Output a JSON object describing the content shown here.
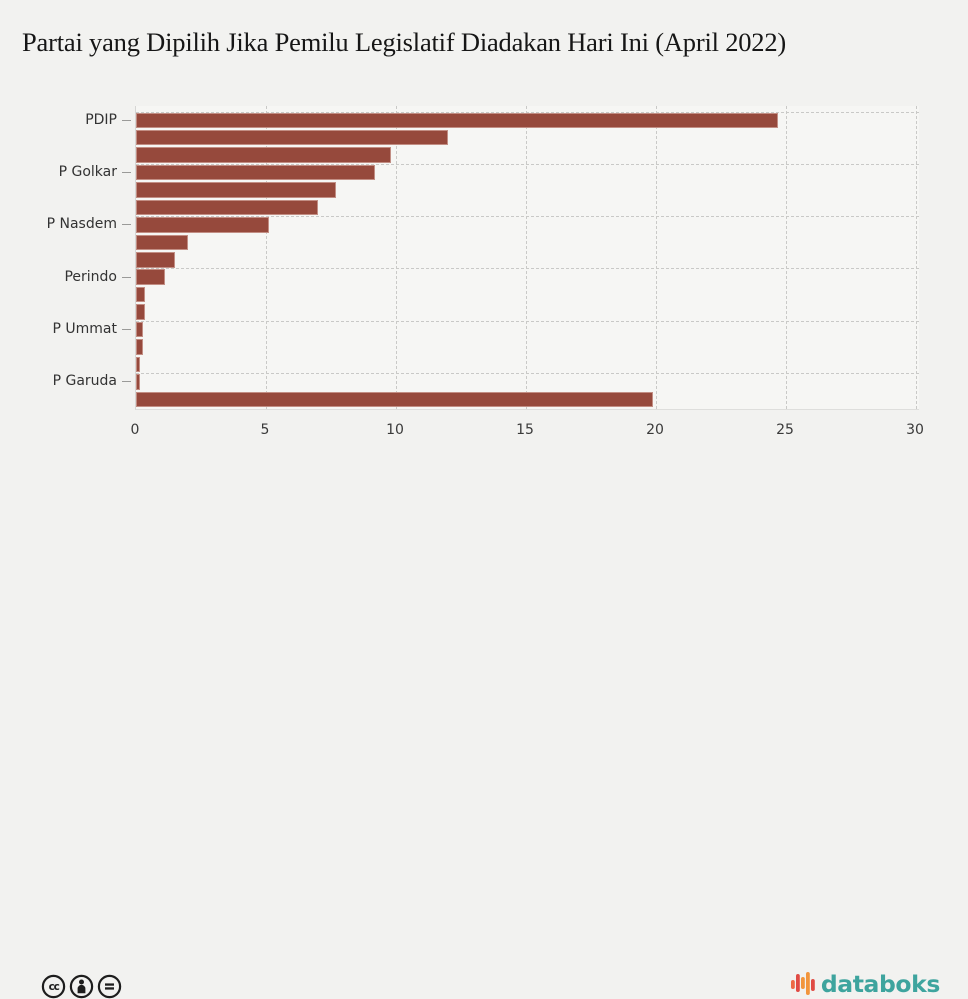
{
  "title": "Partai yang Dipilih Jika Pemilu Legislatif Diadakan Hari Ini (April 2022)",
  "chart_data": {
    "type": "bar",
    "orientation": "horizontal",
    "title": "Partai yang Dipilih Jika Pemilu Legislatif Diadakan Hari Ini (April 2022)",
    "xlabel": "",
    "ylabel": "",
    "xlim": [
      0,
      30
    ],
    "x_ticks": [
      0,
      5,
      10,
      15,
      20,
      25,
      30
    ],
    "grid": "dashed",
    "legend": "none",
    "bar_color": "#96493c",
    "bar_border_color": "#c28e84",
    "visible_y_labels": [
      "PDIP",
      "P Golkar",
      "P Nasdem",
      "Perindo",
      "P Ummat",
      "P Garuda"
    ],
    "labeled_row_indices": [
      0,
      3,
      6,
      9,
      12,
      15
    ],
    "values": [
      24.7,
      12.0,
      9.8,
      9.2,
      7.7,
      7.0,
      5.1,
      2.0,
      1.5,
      1.1,
      0.35,
      0.35,
      0.25,
      0.25,
      0.17,
      0.15,
      19.9
    ]
  },
  "footer": {
    "license_icons": [
      {
        "name": "cc-icon",
        "label": "cc"
      },
      {
        "name": "attribution-icon",
        "label": "by"
      },
      {
        "name": "equal-icon",
        "label": "nd"
      }
    ],
    "logo": {
      "text": "databoks",
      "text_color": "#3EA49E",
      "glyph_colors": [
        "#ED6A45",
        "#E04B44",
        "#F2953C",
        "#F2953C",
        "#E04B44"
      ]
    }
  }
}
